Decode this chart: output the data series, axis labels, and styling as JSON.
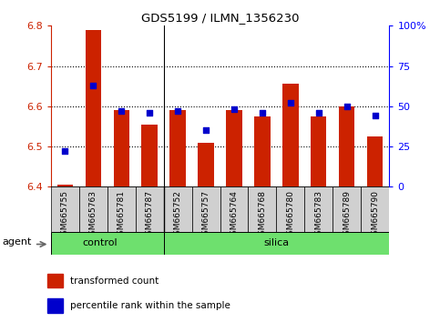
{
  "title": "GDS5199 / ILMN_1356230",
  "samples": [
    "GSM665755",
    "GSM665763",
    "GSM665781",
    "GSM665787",
    "GSM665752",
    "GSM665757",
    "GSM665764",
    "GSM665768",
    "GSM665780",
    "GSM665783",
    "GSM665789",
    "GSM665790"
  ],
  "transformed_count": [
    6.405,
    6.79,
    6.59,
    6.555,
    6.59,
    6.51,
    6.59,
    6.575,
    6.655,
    6.575,
    6.6,
    6.525
  ],
  "percentile_rank": [
    22,
    63,
    47,
    46,
    47,
    35,
    48,
    46,
    52,
    46,
    50,
    44
  ],
  "ylim_left": [
    6.4,
    6.8
  ],
  "ylim_right": [
    0,
    100
  ],
  "yticks_left": [
    6.4,
    6.5,
    6.6,
    6.7,
    6.8
  ],
  "yticks_right": [
    0,
    25,
    50,
    75,
    100
  ],
  "bar_color": "#CC2200",
  "dot_color": "#0000CC",
  "bar_bottom": 6.4,
  "bar_width": 0.55,
  "control_count": 4,
  "left_ylabel_color": "#CC2200",
  "right_ylabel_color": "#0000FF",
  "legend_items": [
    {
      "label": "transformed count",
      "color": "#CC2200"
    },
    {
      "label": "percentile rank within the sample",
      "color": "#0000CC"
    }
  ],
  "agent_label": "agent"
}
